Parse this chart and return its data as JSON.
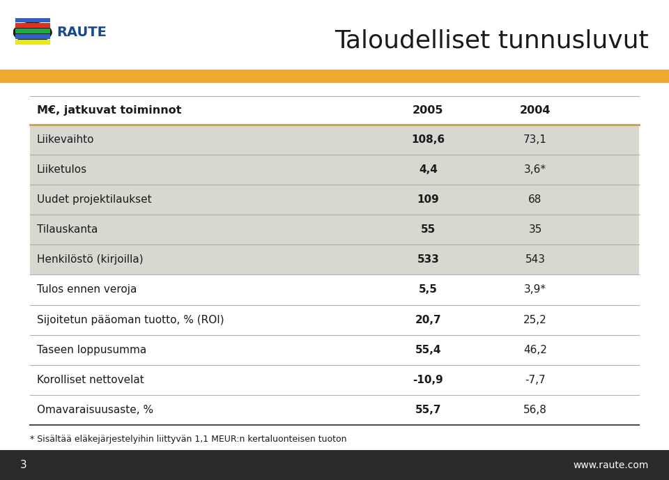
{
  "title": "Taloudelliset tunnusluvut",
  "header_col0": "M€, jatkuvat toiminnot",
  "header_col1": "2005",
  "header_col2": "2004",
  "rows": [
    {
      "label": "Liikevaihto",
      "v2005": "108,6",
      "v2004": "73,1",
      "shaded": true
    },
    {
      "label": "Liiketulos",
      "v2005": "4,4",
      "v2004": "3,6*",
      "shaded": true
    },
    {
      "label": "Uudet projektilaukset",
      "v2005": "109",
      "v2004": "68",
      "shaded": true
    },
    {
      "label": "Tilauskanta",
      "v2005": "55",
      "v2004": "35",
      "shaded": true
    },
    {
      "label": "Henkilöstö (kirjoilla)",
      "v2005": "533",
      "v2004": "543",
      "shaded": true
    },
    {
      "label": "Tulos ennen veroja",
      "v2005": "5,5",
      "v2004": "3,9*",
      "shaded": false
    },
    {
      "label": "Sijoitetun pääoman tuotto, % (ROI)",
      "v2005": "20,7",
      "v2004": "25,2",
      "shaded": false
    },
    {
      "label": "Taseen loppusumma",
      "v2005": "55,4",
      "v2004": "46,2",
      "shaded": false
    },
    {
      "label": "Korolliset nettovelat",
      "v2005": "-10,9",
      "v2004": "-7,7",
      "shaded": false
    },
    {
      "label": "Omavaraisuusaste, %",
      "v2005": "55,7",
      "v2004": "56,8",
      "shaded": false
    }
  ],
  "footnote": "* Sisältää eläkejärjestelyihin liittyvän 1,1 MEUR:n kertaluonteisen tuoton",
  "page_number": "3",
  "website": "www.raute.com",
  "bg_color": "#ffffff",
  "shaded_color": "#d8d8d0",
  "title_color": "#1a1a1a",
  "orange_color": "#f0a830",
  "header_line_color": "#c8a050",
  "bottom_bar_color": "#2a2a2a",
  "table_line_color": "#b0b0a0",
  "bold_line_color": "#505050",
  "raute_blue": "#1a4a8a",
  "raute_text_color": "#1a4a8a"
}
